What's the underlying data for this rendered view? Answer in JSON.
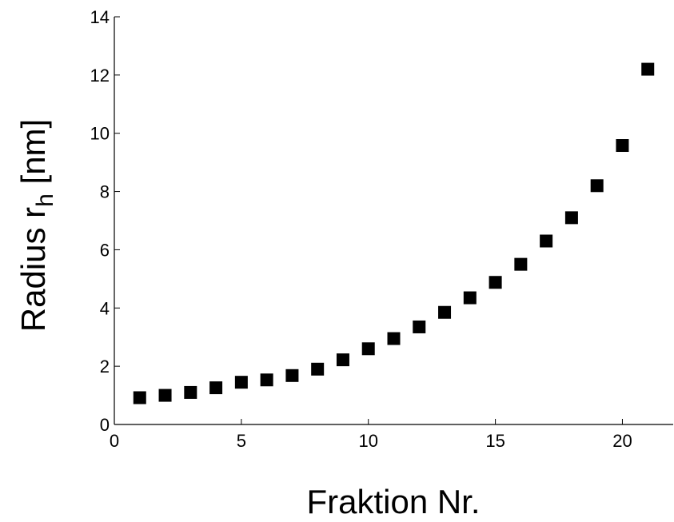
{
  "chart_data": {
    "type": "scatter",
    "xlabel": "Fraktion Nr.",
    "ylabel": {
      "prefix": "Radius r",
      "subscript": "h",
      "suffix": " [nm]"
    },
    "xlim": [
      0,
      22
    ],
    "ylim": [
      0,
      14
    ],
    "xticks": [
      0,
      5,
      10,
      15,
      20
    ],
    "yticks": [
      0,
      2,
      4,
      6,
      8,
      10,
      12,
      14
    ],
    "grid": false,
    "marker": "square",
    "marker_color": "#000000",
    "series": [
      {
        "x": [
          1,
          2,
          3,
          4,
          5,
          6,
          7,
          8,
          9,
          10,
          11,
          12,
          13,
          14,
          15,
          16,
          17,
          18,
          19,
          20,
          21
        ],
        "y": [
          0.92,
          1.0,
          1.1,
          1.26,
          1.45,
          1.53,
          1.68,
          1.9,
          2.22,
          2.6,
          2.95,
          3.35,
          3.85,
          4.35,
          4.88,
          5.5,
          6.3,
          7.1,
          8.2,
          9.58,
          12.2
        ]
      }
    ]
  }
}
